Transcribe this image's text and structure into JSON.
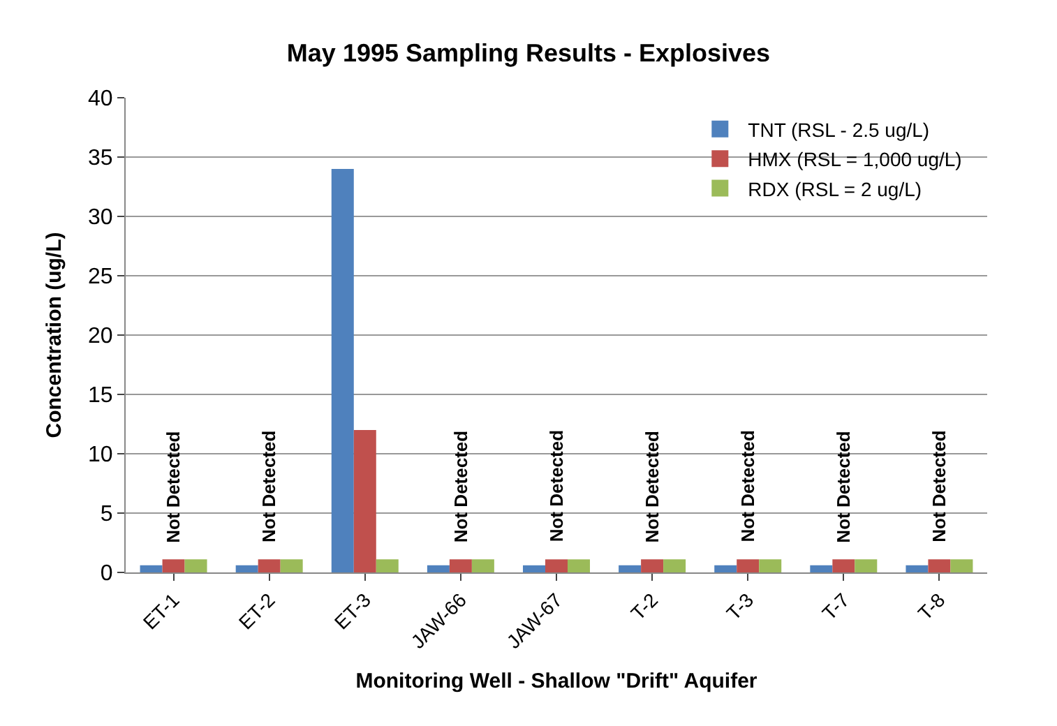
{
  "chart_data": {
    "type": "bar",
    "title": "May 1995 Sampling Results - Explosives",
    "xlabel": "Monitoring Well - Shallow \"Drift\" Aquifer",
    "ylabel": "Concentration (ug/L)",
    "categories": [
      "ET-1",
      "ET-2",
      "ET-3",
      "JAW-66",
      "JAW-67",
      "T-2",
      "T-3",
      "T-7",
      "T-8"
    ],
    "series": [
      {
        "name": "TNT (RSL - 2.5 ug/L)",
        "color": "#4f81bd",
        "values": [
          0.6,
          0.6,
          34,
          0.6,
          0.6,
          0.6,
          0.6,
          0.6,
          0.6
        ]
      },
      {
        "name": "HMX (RSL = 1,000 ug/L)",
        "color": "#c0504d",
        "values": [
          1.1,
          1.1,
          12,
          1.1,
          1.1,
          1.1,
          1.1,
          1.1,
          1.1
        ]
      },
      {
        "name": "RDX (RSL = 2 ug/L)",
        "color": "#9bbb59",
        "values": [
          1.1,
          1.1,
          1.1,
          1.1,
          1.1,
          1.1,
          1.1,
          1.1,
          1.1
        ]
      }
    ],
    "ylim": [
      0,
      40
    ],
    "yticks": [
      0,
      5,
      10,
      15,
      20,
      25,
      30,
      35,
      40
    ],
    "grid": "y",
    "legend": "top right",
    "annotations": [
      {
        "text": "Not Detected",
        "x": "ET-1",
        "y": 1.1
      },
      {
        "text": "Not Detected",
        "x": "ET-2",
        "y": 1.1
      },
      {
        "text": "Not Detected",
        "x": "JAW-66",
        "y": 1.1
      },
      {
        "text": "Not Detected",
        "x": "JAW-67",
        "y": 1.1
      },
      {
        "text": "Not Detected",
        "x": "T-2",
        "y": 1.1
      },
      {
        "text": "Not Detected",
        "x": "T-3",
        "y": 1.1
      },
      {
        "text": "Not Detected",
        "x": "T-7",
        "y": 1.1
      },
      {
        "text": "Not Detected",
        "x": "T-8",
        "y": 1.1
      }
    ]
  }
}
